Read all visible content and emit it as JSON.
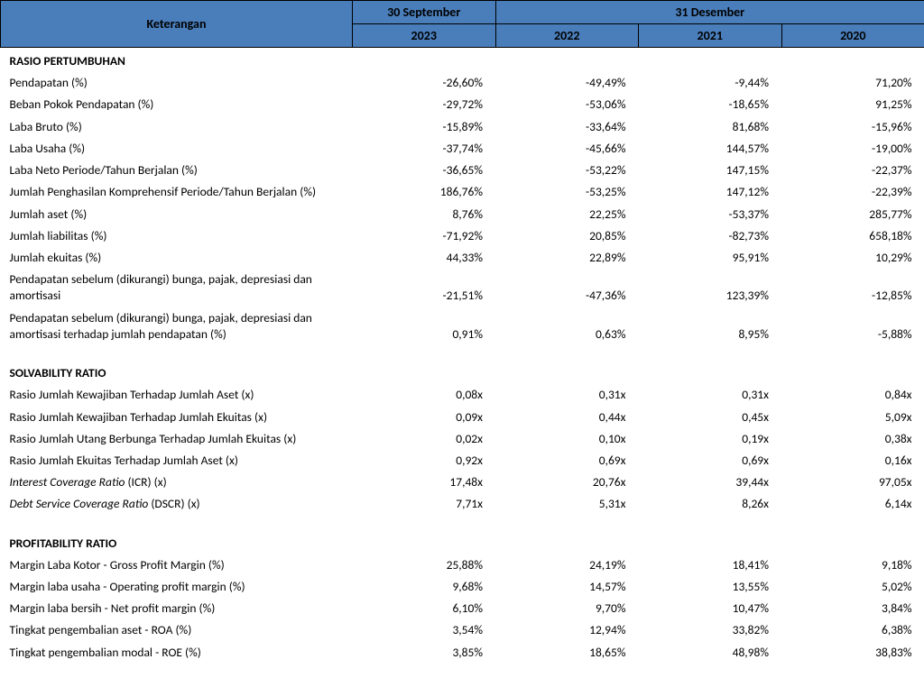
{
  "header": {
    "col_label": "Keterangan",
    "group1": "30 September",
    "group2": "31 Desember",
    "year1": "2023",
    "year2": "2022",
    "year3": "2021",
    "year4": "2020"
  },
  "sections": [
    {
      "title": "RASIO PERTUMBUHAN",
      "rows": [
        {
          "label": "Pendapatan (%)",
          "v": [
            "-26,60%",
            "-49,49%",
            "-9,44%",
            "71,20%"
          ]
        },
        {
          "label": "Beban Pokok Pendapatan (%)",
          "v": [
            "-29,72%",
            "-53,06%",
            "-18,65%",
            "91,25%"
          ]
        },
        {
          "label": "Laba Bruto (%)",
          "v": [
            "-15,89%",
            "-33,64%",
            "81,68%",
            "-15,96%"
          ]
        },
        {
          "label": "Laba Usaha (%)",
          "v": [
            "-37,74%",
            "-45,66%",
            "144,57%",
            "-19,00%"
          ]
        },
        {
          "label": "Laba Neto Periode/Tahun Berjalan (%)",
          "v": [
            "-36,65%",
            "-53,22%",
            "147,15%",
            "-22,37%"
          ]
        },
        {
          "label": "Jumlah Penghasilan Komprehensif Periode/Tahun Berjalan (%)",
          "v": [
            "186,76%",
            "-53,25%",
            "147,12%",
            "-22,39%"
          ]
        },
        {
          "label": "Jumlah aset (%)",
          "v": [
            "8,76%",
            "22,25%",
            "-53,37%",
            "285,77%"
          ]
        },
        {
          "label": "Jumlah liabilitas (%)",
          "v": [
            "-71,92%",
            "20,85%",
            "-82,73%",
            "658,18%"
          ]
        },
        {
          "label": "Jumlah ekuitas (%)",
          "v": [
            "44,33%",
            "22,89%",
            "95,91%",
            "10,29%"
          ]
        },
        {
          "label": "Pendapatan sebelum (dikurangi) bunga, pajak, depresiasi dan amortisasi",
          "v": [
            "-21,51%",
            "-47,36%",
            "123,39%",
            "-12,85%"
          ],
          "valign": "bottom"
        },
        {
          "label": "Pendapatan sebelum (dikurangi) bunga, pajak, depresiasi dan amortisasi terhadap jumlah pendapatan (%)",
          "v": [
            "0,91%",
            "0,63%",
            "8,95%",
            "-5,88%"
          ],
          "valign": "bottom"
        }
      ]
    },
    {
      "title": "SOLVABILITY RATIO",
      "rows": [
        {
          "label": "Rasio Jumlah Kewajiban Terhadap Jumlah Aset (x)",
          "v": [
            "0,08x",
            "0,31x",
            "0,31x",
            "0,84x"
          ]
        },
        {
          "label": "Rasio Jumlah Kewajiban Terhadap Jumlah Ekuitas (x)",
          "v": [
            "0,09x",
            "0,44x",
            "0,45x",
            "5,09x"
          ]
        },
        {
          "label": "Rasio Jumlah Utang Berbunga Terhadap Jumlah Ekuitas (x)",
          "v": [
            "0,02x",
            "0,10x",
            "0,19x",
            "0,38x"
          ]
        },
        {
          "label": "Rasio Jumlah Ekuitas Terhadap Jumlah Aset (x)",
          "v": [
            "0,92x",
            "0,69x",
            "0,69x",
            "0,16x"
          ]
        },
        {
          "label_html": "<span class=\"italic\">Interest Coverage Ratio</span> (ICR) (x)",
          "v": [
            "17,48x",
            "20,76x",
            "39,44x",
            "97,05x"
          ]
        },
        {
          "label_html": "<span class=\"italic\">Debt Service Coverage Ratio</span> (DSCR) (x)",
          "v": [
            "7,71x",
            "5,31x",
            "8,26x",
            "6,14x"
          ]
        }
      ]
    },
    {
      "title": "PROFITABILITY RATIO",
      "rows": [
        {
          "label": "Margin Laba Kotor - Gross Profit Margin (%)",
          "v": [
            "25,88%",
            "24,19%",
            "18,41%",
            "9,18%"
          ]
        },
        {
          "label": "Margin laba usaha - Operating profit margin (%)",
          "v": [
            "9,68%",
            "14,57%",
            "13,55%",
            "5,02%"
          ]
        },
        {
          "label": "Margin laba bersih - Net profit margin (%)",
          "v": [
            "6,10%",
            "9,70%",
            "10,47%",
            "3,84%"
          ]
        },
        {
          "label": "Tingkat pengembalian aset - ROA (%)",
          "v": [
            "3,54%",
            "12,94%",
            "33,82%",
            "6,38%"
          ]
        },
        {
          "label": "Tingkat pengembalian modal - ROE (%)",
          "v": [
            "3,85%",
            "18,65%",
            "48,98%",
            "38,83%"
          ]
        }
      ]
    }
  ],
  "style": {
    "header_bg": "#4a7ebb",
    "border_color": "#000000",
    "font_family": "Calibri",
    "base_font_size_pt": 10
  }
}
